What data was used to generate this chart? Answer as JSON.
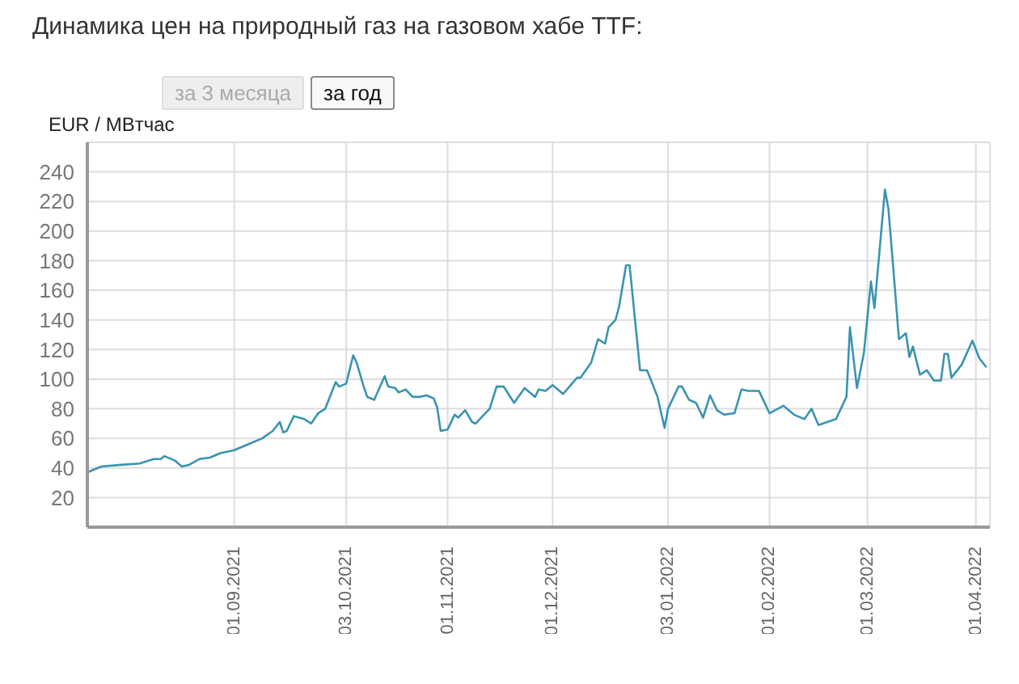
{
  "chart_data": {
    "type": "line",
    "title": "Динамика цен на природный газ на газовом хабе TTF:",
    "ylabel": "EUR / MBтчас",
    "annotations": [
      "за 3 месяца",
      "за год"
    ],
    "x": [
      "2021-07-21",
      "2021-07-25",
      "2021-07-30",
      "2021-08-05",
      "2021-08-09",
      "2021-08-11",
      "2021-08-12",
      "2021-08-15",
      "2021-08-17",
      "2021-08-19",
      "2021-08-22",
      "2021-08-25",
      "2021-08-28",
      "2021-09-01",
      "2021-09-05",
      "2021-09-09",
      "2021-09-12",
      "2021-09-14",
      "2021-09-15",
      "2021-09-16",
      "2021-09-18",
      "2021-09-21",
      "2021-09-23",
      "2021-09-25",
      "2021-09-27",
      "2021-09-30",
      "2021-10-01",
      "2021-10-03",
      "2021-10-05",
      "2021-10-06",
      "2021-10-08",
      "2021-10-09",
      "2021-10-11",
      "2021-10-14",
      "2021-10-15",
      "2021-10-17",
      "2021-10-18",
      "2021-10-20",
      "2021-10-22",
      "2021-10-24",
      "2021-10-26",
      "2021-10-28",
      "2021-10-29",
      "2021-10-30",
      "2021-11-01",
      "2021-11-03",
      "2021-11-04",
      "2021-11-06",
      "2021-11-08",
      "2021-11-09",
      "2021-11-11",
      "2021-11-13",
      "2021-11-15",
      "2021-11-17",
      "2021-11-20",
      "2021-11-23",
      "2021-11-26",
      "2021-11-27",
      "2021-11-29",
      "2021-12-01",
      "2021-12-04",
      "2021-12-08",
      "2021-12-09",
      "2021-12-12",
      "2021-12-14",
      "2021-12-16",
      "2021-12-17",
      "2021-12-19",
      "2021-12-20",
      "2021-12-22",
      "2021-12-23",
      "2021-12-26",
      "2021-12-28",
      "2021-12-31",
      "2022-01-02",
      "2022-01-03",
      "2022-01-06",
      "2022-01-07",
      "2022-01-09",
      "2022-01-11",
      "2022-01-13",
      "2022-01-15",
      "2022-01-17",
      "2022-01-19",
      "2022-01-22",
      "2022-01-24",
      "2022-01-26",
      "2022-01-29",
      "2022-02-01",
      "2022-02-05",
      "2022-02-08",
      "2022-02-11",
      "2022-02-13",
      "2022-02-15",
      "2022-02-20",
      "2022-02-23",
      "2022-02-24",
      "2022-02-26",
      "2022-02-28",
      "2022-03-02",
      "2022-03-03",
      "2022-03-06",
      "2022-03-07",
      "2022-03-09",
      "2022-03-10",
      "2022-03-12",
      "2022-03-13",
      "2022-03-14",
      "2022-03-16",
      "2022-03-18",
      "2022-03-20",
      "2022-03-22",
      "2022-03-23",
      "2022-03-24",
      "2022-03-25",
      "2022-03-28",
      "2022-03-31",
      "2022-04-02",
      "2022-04-04"
    ],
    "series": [
      {
        "color": "#3a94b0",
        "values": [
          37,
          41,
          42,
          43,
          46,
          46,
          48,
          45,
          41,
          42,
          46,
          47,
          50,
          52,
          56,
          60,
          65,
          71,
          64,
          65,
          75,
          73,
          70,
          77,
          80,
          98,
          95,
          97,
          116,
          111,
          95,
          88,
          86,
          102,
          95,
          94,
          91,
          93,
          88,
          88,
          89,
          87,
          81,
          65,
          66,
          76,
          74,
          79,
          71,
          70,
          75,
          80,
          95,
          95,
          84,
          94,
          88,
          93,
          92,
          96,
          90,
          101,
          101,
          111,
          127,
          124,
          135,
          140,
          149,
          177,
          177,
          106,
          106,
          88,
          67,
          80,
          95,
          95,
          86,
          84,
          74,
          89,
          79,
          76,
          77,
          93,
          92,
          92,
          77,
          82,
          76,
          73,
          80,
          69,
          73,
          88,
          135,
          94,
          118,
          166,
          148,
          228,
          215,
          157,
          127,
          131,
          115,
          122,
          103,
          106,
          99,
          99,
          117,
          117,
          101,
          110,
          126,
          114,
          108
        ]
      }
    ],
    "xlim": [
      "2021-07-21",
      "2022-04-05"
    ],
    "xticks": [
      {
        "value": "2021-09-01",
        "label": "01.09.2021"
      },
      {
        "value": "2021-10-03",
        "label": "03.10.2021"
      },
      {
        "value": "2021-11-01",
        "label": "01.11.2021"
      },
      {
        "value": "2021-12-01",
        "label": "01.12.2021"
      },
      {
        "value": "2022-01-03",
        "label": "03.01.2022"
      },
      {
        "value": "2022-02-01",
        "label": "01.02.2022"
      },
      {
        "value": "2022-03-01",
        "label": "01.03.2022"
      },
      {
        "value": "2022-04-01",
        "label": "01.04.2022"
      }
    ],
    "ylim": [
      0,
      260
    ],
    "yticks": [
      20,
      40,
      60,
      80,
      100,
      120,
      140,
      160,
      180,
      200,
      220,
      240
    ],
    "grid": true,
    "legend": false,
    "marker": "none",
    "line_style": "solid"
  }
}
